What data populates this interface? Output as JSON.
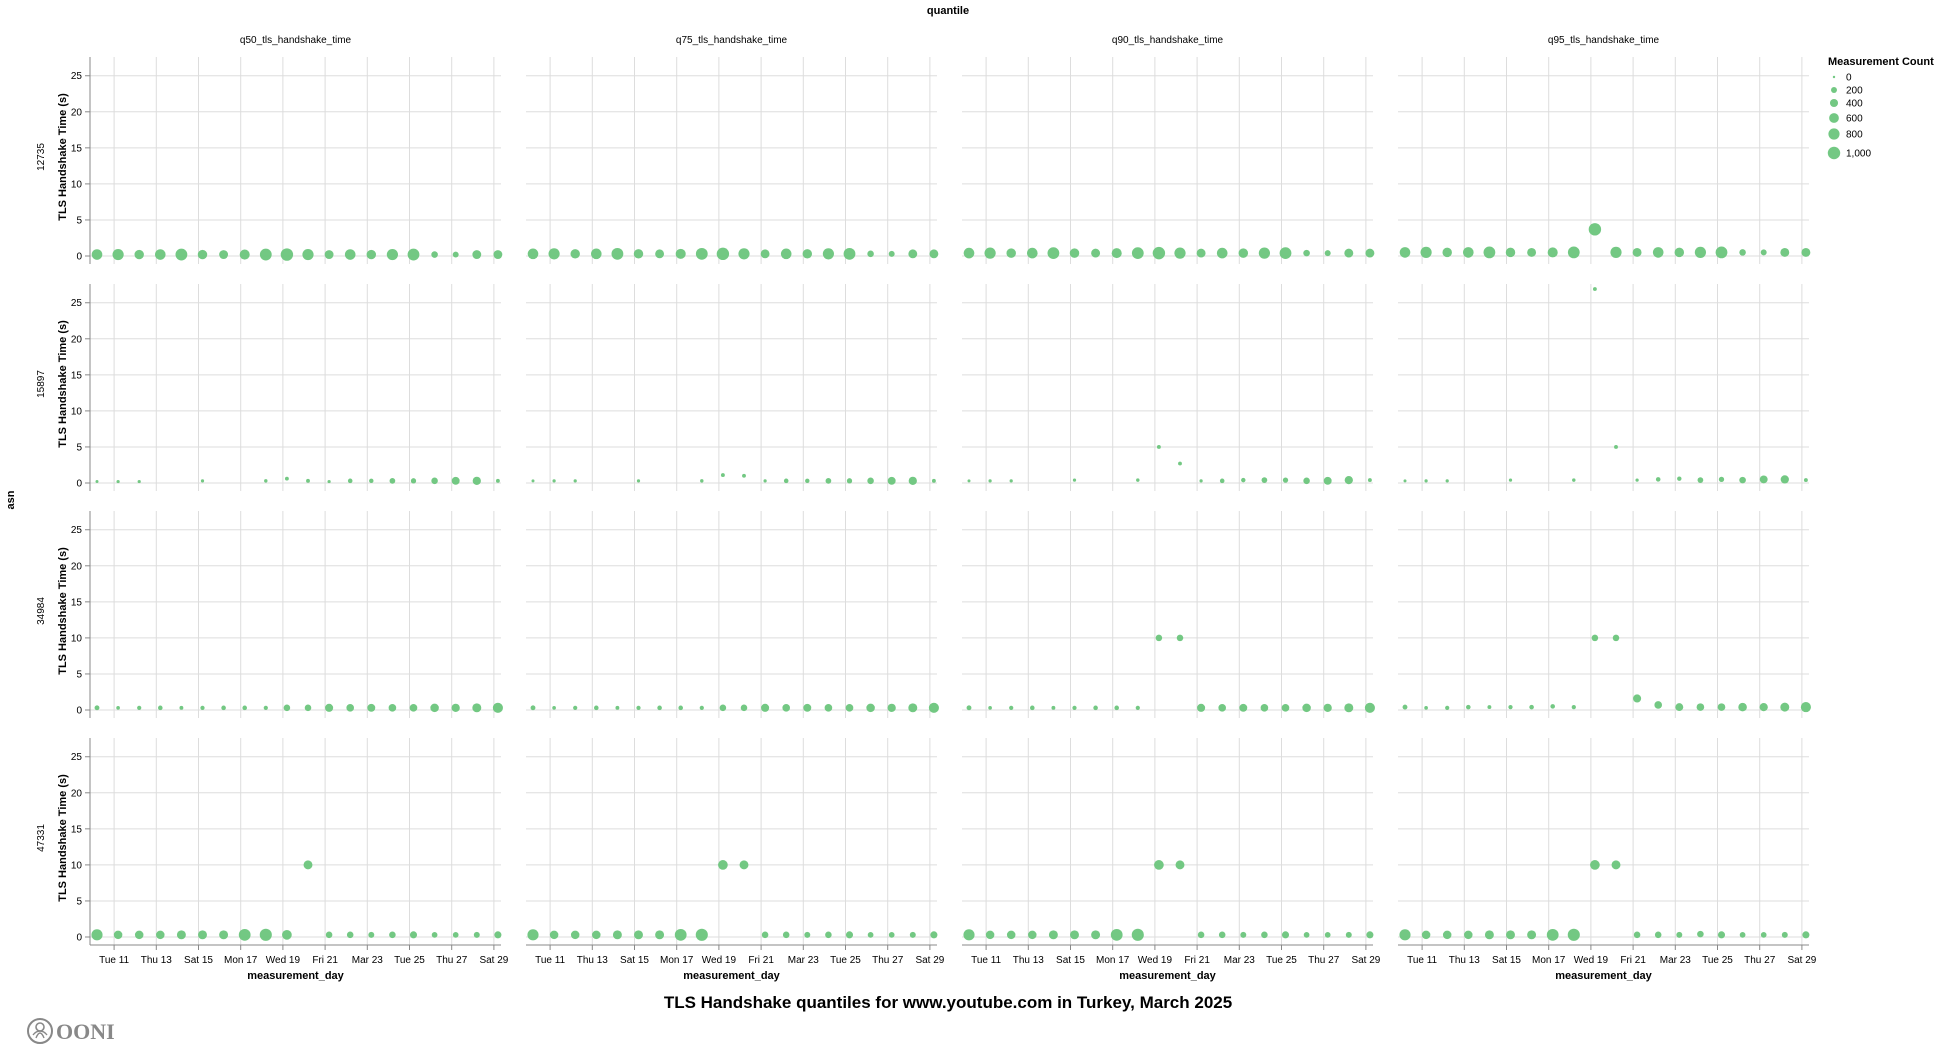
{
  "chart_data": {
    "type": "scatter",
    "title": "TLS Handshake quantiles for www.youtube.com in Turkey, March 2025",
    "column_facet_title": "quantile",
    "row_facet_title": "asn",
    "xlabel": "measurement_day",
    "ylabel": "TLS Handshake Time (s)",
    "ylim": [
      0,
      27.6
    ],
    "yticks": [
      0,
      5,
      10,
      15,
      20,
      25
    ],
    "xtick_labels": [
      "Tue 11",
      "Thu 13",
      "Sat 15",
      "Mon 17",
      "Wed 19",
      "Fri 21",
      "Mar 23",
      "Tue 25",
      "Thu 27",
      "Sat 29"
    ],
    "xtick_days": [
      11,
      13,
      15,
      17,
      19,
      21,
      23,
      25,
      27,
      29
    ],
    "grid": true,
    "color": "#6cc57c",
    "size_legend": {
      "title": "Measurement Count",
      "values": [
        0,
        200,
        400,
        600,
        800,
        1000
      ],
      "labels": [
        "0",
        "200",
        "400",
        "600",
        "800",
        "1,000"
      ],
      "placement": "top-right"
    },
    "quantiles": [
      "q50_tls_handshake_time",
      "q75_tls_handshake_time",
      "q90_tls_handshake_time",
      "q95_tls_handshake_time"
    ],
    "days": [
      "2025-03-10",
      "2025-03-11",
      "2025-03-12",
      "2025-03-13",
      "2025-03-14",
      "2025-03-15",
      "2025-03-16",
      "2025-03-17",
      "2025-03-18",
      "2025-03-19",
      "2025-03-20",
      "2025-03-21",
      "2025-03-22",
      "2025-03-23",
      "2025-03-24",
      "2025-03-25",
      "2025-03-26",
      "2025-03-27",
      "2025-03-28",
      "2025-03-29"
    ],
    "asns": [
      {
        "asn": "12735",
        "measurement_count": [
          720,
          810,
          560,
          720,
          900,
          560,
          490,
          640,
          900,
          1000,
          810,
          490,
          720,
          560,
          810,
          900,
          250,
          200,
          490,
          490
        ],
        "values": [
          [
            0.2,
            0.2,
            0.2,
            0.2,
            0.2,
            0.2,
            0.2,
            0.2,
            0.2,
            0.2,
            0.2,
            0.2,
            0.2,
            0.2,
            0.2,
            0.2,
            0.2,
            0.2,
            0.2,
            0.2
          ],
          [
            0.3,
            0.3,
            0.3,
            0.3,
            0.3,
            0.3,
            0.3,
            0.3,
            0.3,
            0.3,
            0.3,
            0.3,
            0.3,
            0.3,
            0.3,
            0.3,
            0.3,
            0.3,
            0.3,
            0.3
          ],
          [
            0.4,
            0.4,
            0.4,
            0.4,
            0.4,
            0.4,
            0.4,
            0.4,
            0.4,
            0.4,
            0.4,
            0.4,
            0.4,
            0.4,
            0.4,
            0.4,
            0.4,
            0.4,
            0.4,
            0.4
          ],
          [
            0.5,
            0.5,
            0.5,
            0.5,
            0.5,
            0.5,
            0.5,
            0.5,
            0.5,
            3.7,
            0.5,
            0.5,
            0.5,
            0.5,
            0.5,
            0.5,
            0.5,
            0.5,
            0.5,
            0.5
          ]
        ]
      },
      {
        "asn": "15897",
        "measurement_count": [
          20,
          30,
          30,
          null,
          null,
          30,
          null,
          null,
          40,
          60,
          60,
          30,
          100,
          90,
          180,
          150,
          250,
          380,
          420,
          60
        ],
        "values": [
          [
            0.2,
            0.2,
            0.2,
            null,
            null,
            0.3,
            null,
            null,
            0.3,
            0.6,
            0.3,
            0.2,
            0.3,
            0.3,
            0.3,
            0.3,
            0.3,
            0.3,
            0.3,
            0.3
          ],
          [
            0.3,
            0.3,
            0.3,
            null,
            null,
            0.3,
            null,
            null,
            0.3,
            1.1,
            1.0,
            0.3,
            0.3,
            0.3,
            0.3,
            0.3,
            0.3,
            0.3,
            0.3,
            0.3
          ],
          [
            0.3,
            0.3,
            0.3,
            null,
            null,
            0.4,
            null,
            null,
            0.4,
            5.0,
            2.7,
            0.3,
            0.3,
            0.4,
            0.4,
            0.4,
            0.3,
            0.3,
            0.4,
            0.4
          ],
          [
            0.3,
            0.3,
            0.3,
            null,
            null,
            0.4,
            null,
            null,
            0.4,
            26.9,
            5.0,
            0.4,
            0.5,
            0.6,
            0.4,
            0.5,
            0.4,
            0.5,
            0.5,
            0.4
          ]
        ]
      },
      {
        "asn": "34984",
        "measurement_count": [
          120,
          50,
          80,
          100,
          60,
          80,
          100,
          100,
          80,
          250,
          250,
          400,
          350,
          380,
          350,
          350,
          450,
          420,
          500,
          650
        ],
        "values": [
          [
            0.3,
            0.3,
            0.3,
            0.3,
            0.3,
            0.3,
            0.3,
            0.3,
            0.3,
            0.3,
            0.3,
            0.3,
            0.3,
            0.3,
            0.3,
            0.3,
            0.3,
            0.3,
            0.3,
            0.3
          ],
          [
            0.3,
            0.3,
            0.3,
            0.3,
            0.3,
            0.3,
            0.3,
            0.3,
            0.3,
            0.3,
            0.3,
            0.3,
            0.3,
            0.3,
            0.3,
            0.3,
            0.3,
            0.3,
            0.3,
            0.3
          ],
          [
            0.3,
            0.3,
            0.3,
            0.3,
            0.3,
            0.3,
            0.3,
            0.3,
            0.3,
            10.0,
            10.0,
            0.3,
            0.3,
            0.3,
            0.3,
            0.3,
            0.3,
            0.3,
            0.3,
            0.3
          ],
          [
            0.4,
            0.3,
            0.3,
            0.4,
            0.4,
            0.4,
            0.4,
            0.5,
            0.4,
            10.0,
            10.0,
            1.6,
            0.7,
            0.4,
            0.4,
            0.4,
            0.4,
            0.4,
            0.4,
            0.4
          ]
        ]
      },
      {
        "asn": "47331",
        "measurement_count": [
          800,
          450,
          450,
          450,
          500,
          500,
          500,
          900,
          950,
          600,
          500,
          250,
          250,
          200,
          250,
          300,
          180,
          180,
          200,
          300
        ],
        "values": [
          [
            0.3,
            0.3,
            0.3,
            0.3,
            0.3,
            0.3,
            0.3,
            0.3,
            0.3,
            0.3,
            10.0,
            0.3,
            0.3,
            0.3,
            0.3,
            0.3,
            0.3,
            0.3,
            0.3,
            0.3
          ],
          [
            0.3,
            0.3,
            0.3,
            0.3,
            0.3,
            0.3,
            0.3,
            0.3,
            0.3,
            10.0,
            10.0,
            0.3,
            0.3,
            0.3,
            0.3,
            0.3,
            0.3,
            0.3,
            0.3,
            0.3
          ],
          [
            0.3,
            0.3,
            0.3,
            0.3,
            0.3,
            0.3,
            0.3,
            0.3,
            0.3,
            10.0,
            10.0,
            0.3,
            0.3,
            0.3,
            0.3,
            0.3,
            0.3,
            0.3,
            0.3,
            0.3
          ],
          [
            0.3,
            0.3,
            0.3,
            0.3,
            0.3,
            0.3,
            0.3,
            0.3,
            0.3,
            10.0,
            10.0,
            0.3,
            0.3,
            0.3,
            0.4,
            0.3,
            0.3,
            0.3,
            0.3,
            0.3
          ]
        ]
      }
    ]
  },
  "logo": {
    "text": "OONI"
  }
}
